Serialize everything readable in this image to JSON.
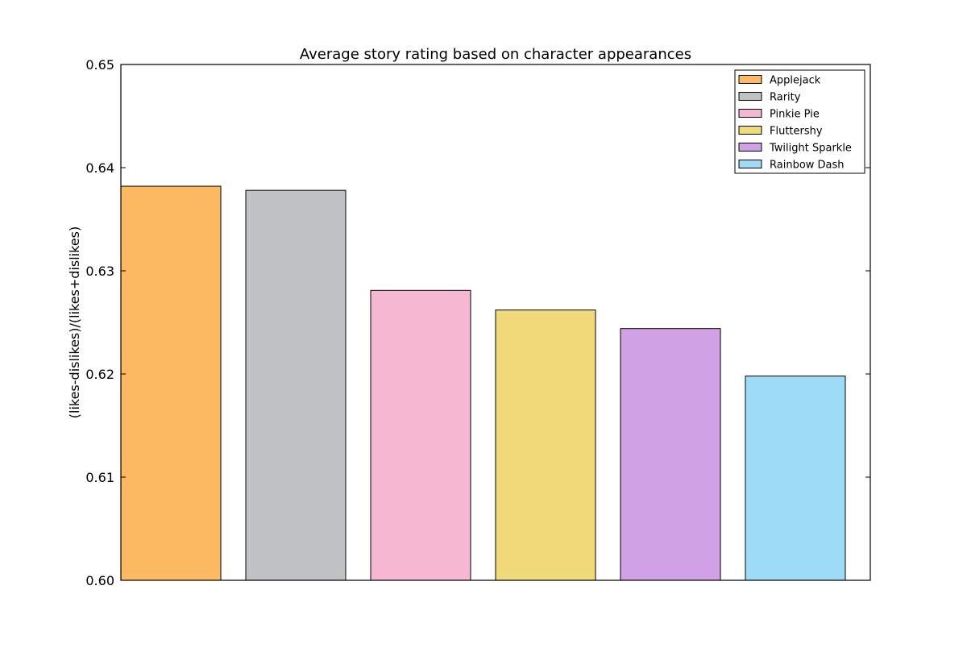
{
  "chart_data": {
    "type": "bar",
    "title": "Average story rating based on character appearances",
    "xlabel": "",
    "ylabel": "(likes-dislikes)/(likes+dislikes)",
    "ylim": [
      0.6,
      0.65
    ],
    "yticks": [
      "0.60",
      "0.61",
      "0.62",
      "0.63",
      "0.64",
      "0.65"
    ],
    "grid": false,
    "legend_position": "top-right",
    "series": [
      {
        "name": "Applejack",
        "value": 0.6382,
        "color": "#FDBA63"
      },
      {
        "name": "Rarity",
        "value": 0.6378,
        "color": "#BFC2C3"
      },
      {
        "name": "Pinkie Pie",
        "value": 0.6281,
        "color": "#F5B7D2"
      },
      {
        "name": "Fluttershy",
        "value": 0.6262,
        "color": "#F0DA79"
      },
      {
        "name": "Twilight Sparkle",
        "value": 0.6244,
        "color": "#D1A1E5"
      },
      {
        "name": "Rainbow Dash",
        "value": 0.6198,
        "color": "#9EDBF7"
      }
    ]
  }
}
